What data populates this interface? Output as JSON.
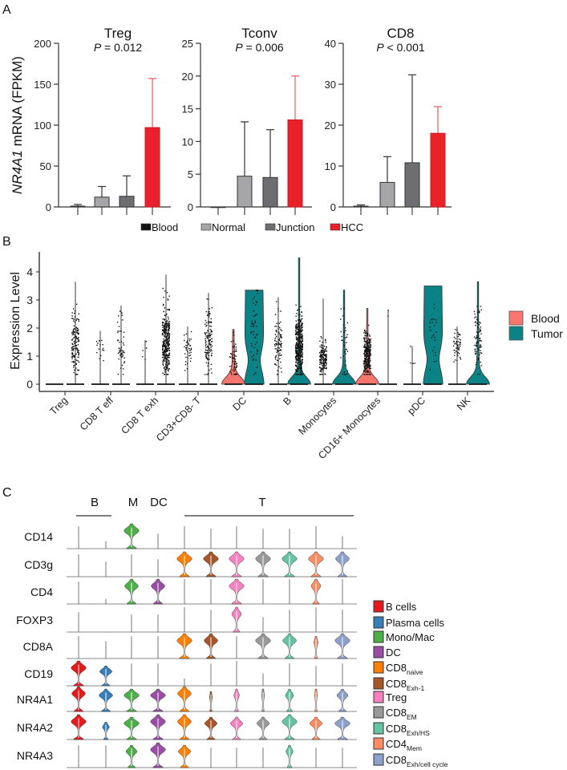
{
  "chart_data": [
    {
      "panel": "A",
      "type": "bar",
      "ylabel_italic": "NR4A1",
      "ylabel_rest": " mRNA (FPKM)",
      "categories": [
        "Blood",
        "Normal",
        "Junction",
        "HCC"
      ],
      "colors": {
        "Blood": "#141414",
        "Normal": "#a6a6a9",
        "Junction": "#6e6e72",
        "HCC": "#e8212a"
      },
      "subplots": [
        {
          "title": "Treg",
          "p_label": "P",
          "p_text": " = 0.012",
          "ylim": [
            0,
            200
          ],
          "yticks": [
            "0",
            "50",
            "100",
            "150",
            "200"
          ],
          "values": [
            1,
            12,
            13,
            97
          ],
          "error_upper": [
            3,
            25,
            38,
            157
          ]
        },
        {
          "title": "Tconv",
          "p_label": "P",
          "p_text": " = 0.006",
          "ylim": [
            0,
            25
          ],
          "yticks": [
            "0",
            "5",
            "10",
            "15",
            "20",
            "25"
          ],
          "values": [
            0,
            4.7,
            4.5,
            13.3
          ],
          "error_upper": [
            0,
            13,
            11.8,
            20
          ]
        },
        {
          "title": "CD8",
          "p_label": "P",
          "p_text": " < 0.001",
          "ylim": [
            0,
            40
          ],
          "yticks": [
            "0",
            "10",
            "20",
            "30",
            "40"
          ],
          "values": [
            0.2,
            6,
            10.8,
            18
          ],
          "error_upper": [
            0.5,
            12.3,
            32.3,
            24.5
          ]
        }
      ],
      "legend": [
        "Blood",
        "Normal",
        "Junction",
        "HCC"
      ]
    },
    {
      "panel": "B",
      "type": "violin",
      "ylabel": "Expression Level",
      "ylim": [
        0,
        4.6
      ],
      "yticks": [
        "0",
        "1",
        "2",
        "3",
        "4"
      ],
      "legend": [
        {
          "label": "Blood",
          "color": "#f8766d"
        },
        {
          "label": "Tumor",
          "color": "#0b8386"
        }
      ],
      "categories": [
        {
          "name": "Treg",
          "blood": {
            "max": 0,
            "shape": "line",
            "n": 0,
            "mean": 0,
            "sd": 0
          },
          "tumor": {
            "max": 3.65,
            "shape": "line",
            "n": 150,
            "mean": 1.4,
            "sd": 0.6
          }
        },
        {
          "name": "CD8 T eff",
          "blood": {
            "max": 1.9,
            "shape": "line",
            "n": 15,
            "mean": 1.3,
            "sd": 0.3
          },
          "tumor": {
            "max": 2.8,
            "shape": "line",
            "n": 50,
            "mean": 1.3,
            "sd": 0.6
          }
        },
        {
          "name": "CD8 T exh",
          "blood": {
            "max": 1.57,
            "shape": "line",
            "n": 5,
            "mean": 1.0,
            "sd": 0.3
          },
          "tumor": {
            "max": 3.9,
            "shape": "line",
            "n": 350,
            "mean": 1.5,
            "sd": 0.6
          }
        },
        {
          "name": "CD3+CD8- T",
          "blood": {
            "max": 2.05,
            "shape": "line",
            "n": 40,
            "mean": 1.3,
            "sd": 0.3
          },
          "tumor": {
            "max": 3.25,
            "shape": "line",
            "n": 120,
            "mean": 1.5,
            "sd": 0.6
          }
        },
        {
          "name": "DC",
          "blood": {
            "max": 1.95,
            "shape": "bottom",
            "n": 60,
            "mean": 0.8,
            "sd": 0.4
          },
          "tumor": {
            "max": 3.35,
            "shape": "wide",
            "n": 50,
            "mean": 1.8,
            "sd": 0.8
          }
        },
        {
          "name": "B",
          "blood": {
            "max": 3.1,
            "shape": "line",
            "n": 90,
            "mean": 1.4,
            "sd": 0.5
          },
          "tumor": {
            "max": 4.5,
            "shape": "bottom",
            "n": 400,
            "mean": 1.4,
            "sd": 0.6
          }
        },
        {
          "name": "Monocytes",
          "blood": {
            "max": 3.05,
            "shape": "line",
            "n": 150,
            "mean": 0.9,
            "sd": 0.3
          },
          "tumor": {
            "max": 3.35,
            "shape": "bottom",
            "n": 40,
            "mean": 1.3,
            "sd": 0.8
          }
        },
        {
          "name": "CD16+ Monocytes",
          "blood": {
            "max": 2.7,
            "shape": "bottom",
            "n": 300,
            "mean": 1.1,
            "sd": 0.4
          },
          "tumor": {
            "max": 2.65,
            "shape": "line",
            "n": 2,
            "mean": 2.4,
            "sd": 0.2
          }
        },
        {
          "name": "pDC",
          "blood": {
            "max": 1.35,
            "shape": "line",
            "n": 4,
            "mean": 1.0,
            "sd": 0.3
          },
          "tumor": {
            "max": 3.5,
            "shape": "wide",
            "n": 25,
            "mean": 1.8,
            "sd": 0.8
          }
        },
        {
          "name": "NK",
          "blood": {
            "max": 2.05,
            "shape": "line",
            "n": 50,
            "mean": 1.35,
            "sd": 0.3
          },
          "tumor": {
            "max": 3.65,
            "shape": "bottom",
            "n": 80,
            "mean": 1.6,
            "sd": 0.5
          }
        }
      ]
    },
    {
      "panel": "C",
      "type": "stacked-violin",
      "groups": [
        {
          "label": "B",
          "line": true
        },
        {
          "label": "M",
          "line": false
        },
        {
          "label": "DC",
          "line": false
        },
        {
          "label": "T",
          "line": true
        }
      ],
      "clusters": [
        {
          "name": "B cells",
          "sub": "",
          "color": "#e41a1c"
        },
        {
          "name": "Plasma cells",
          "sub": "",
          "color": "#377eb8"
        },
        {
          "name": "Mono/Mac",
          "sub": "",
          "color": "#4daf4a"
        },
        {
          "name": "DC",
          "sub": "",
          "color": "#984ea3"
        },
        {
          "name": "CD8",
          "sub": "naive",
          "color": "#ff7f00"
        },
        {
          "name": "CD8",
          "sub": "Exh-1",
          "color": "#a65628"
        },
        {
          "name": "Treg",
          "sub": "",
          "color": "#f781bf"
        },
        {
          "name": "CD8",
          "sub": "EM",
          "color": "#999999"
        },
        {
          "name": "CD8",
          "sub": "Exh/HS",
          "color": "#66c2a5"
        },
        {
          "name": "CD4",
          "sub": "Mem",
          "color": "#fc8d62"
        },
        {
          "name": "CD8",
          "sub": "Exh/cell cycle",
          "color": "#8da0cb"
        }
      ],
      "genes": [
        {
          "name": "CD14",
          "violins": [
            [
              0.9,
              0
            ],
            [
              0.3,
              0
            ],
            [
              1,
              1
            ],
            [
              0.6,
              0
            ],
            [
              0.9,
              0
            ],
            [
              0.8,
              0
            ],
            [
              0.9,
              0
            ],
            [
              0.8,
              0
            ],
            [
              0.8,
              0
            ],
            [
              0.9,
              0
            ],
            [
              0.5,
              0
            ]
          ]
        },
        {
          "name": "CD3g",
          "violins": [
            [
              0.9,
              0
            ],
            [
              0.6,
              0
            ],
            [
              0.9,
              0
            ],
            [
              0.7,
              0
            ],
            [
              1,
              1
            ],
            [
              1,
              1
            ],
            [
              1,
              1
            ],
            [
              1,
              1
            ],
            [
              1,
              1
            ],
            [
              1,
              1
            ],
            [
              1,
              0.9
            ]
          ]
        },
        {
          "name": "CD4",
          "violins": [
            [
              0.9,
              0
            ],
            [
              0.2,
              0
            ],
            [
              1,
              0.9
            ],
            [
              1,
              0.9
            ],
            [
              1,
              0
            ],
            [
              1,
              0
            ],
            [
              1,
              1
            ],
            [
              1,
              0
            ],
            [
              1,
              0
            ],
            [
              1,
              0.6
            ],
            [
              1,
              0
            ]
          ]
        },
        {
          "name": "FOXP3",
          "violins": [
            [
              0.8,
              0
            ],
            [
              0,
              0
            ],
            [
              0.7,
              0
            ],
            [
              0.7,
              0
            ],
            [
              1,
              0
            ],
            [
              0.9,
              0
            ],
            [
              1,
              0.6
            ],
            [
              0.6,
              0
            ],
            [
              0.9,
              0
            ],
            [
              1,
              0
            ],
            [
              0.9,
              0
            ]
          ]
        },
        {
          "name": "CD8A",
          "violins": [
            [
              0.9,
              0
            ],
            [
              0.7,
              0
            ],
            [
              0.9,
              0
            ],
            [
              0.9,
              0
            ],
            [
              1,
              1
            ],
            [
              1,
              0.9
            ],
            [
              0.9,
              0
            ],
            [
              1,
              1
            ],
            [
              1,
              0.9
            ],
            [
              0.9,
              0.2
            ],
            [
              1,
              1
            ]
          ]
        },
        {
          "name": "CD19",
          "violins": [
            [
              1,
              1
            ],
            [
              0.8,
              0.8
            ],
            [
              0.9,
              0
            ],
            [
              0.9,
              0
            ],
            [
              0.3,
              0
            ],
            [
              0.9,
              0
            ],
            [
              1,
              0
            ],
            [
              0.5,
              0
            ],
            [
              0.9,
              0
            ],
            [
              0.8,
              0
            ],
            [
              0.9,
              0
            ]
          ]
        },
        {
          "name": "NR4A1",
          "violins": [
            [
              1,
              0.9
            ],
            [
              0.9,
              0.9
            ],
            [
              0.9,
              1
            ],
            [
              0.9,
              1
            ],
            [
              1,
              0.9
            ],
            [
              0.8,
              0.1
            ],
            [
              0.9,
              0.3
            ],
            [
              0.9,
              0.1
            ],
            [
              0.9,
              0.5
            ],
            [
              0.9,
              0.1
            ],
            [
              0.9,
              0.7
            ]
          ]
        },
        {
          "name": "NR4A2",
          "violins": [
            [
              1,
              1
            ],
            [
              0.7,
              0.4
            ],
            [
              0.9,
              1
            ],
            [
              1,
              1
            ],
            [
              1,
              0.9
            ],
            [
              0.9,
              0.8
            ],
            [
              0.9,
              0.8
            ],
            [
              0.9,
              0.8
            ],
            [
              1,
              1
            ],
            [
              0.9,
              0.8
            ],
            [
              0.9,
              1
            ]
          ]
        },
        {
          "name": "NR4A3",
          "violins": [
            [
              0.9,
              0
            ],
            [
              0.9,
              0
            ],
            [
              0.9,
              0.7
            ],
            [
              1,
              1
            ],
            [
              0.9,
              0.8
            ],
            [
              0.8,
              0
            ],
            [
              0.8,
              0
            ],
            [
              0.8,
              0
            ],
            [
              0.9,
              0.4
            ],
            [
              0.8,
              0
            ],
            [
              0.8,
              0
            ]
          ]
        }
      ]
    }
  ],
  "panel_labels": {
    "a": "A",
    "b": "B",
    "c": "C"
  }
}
